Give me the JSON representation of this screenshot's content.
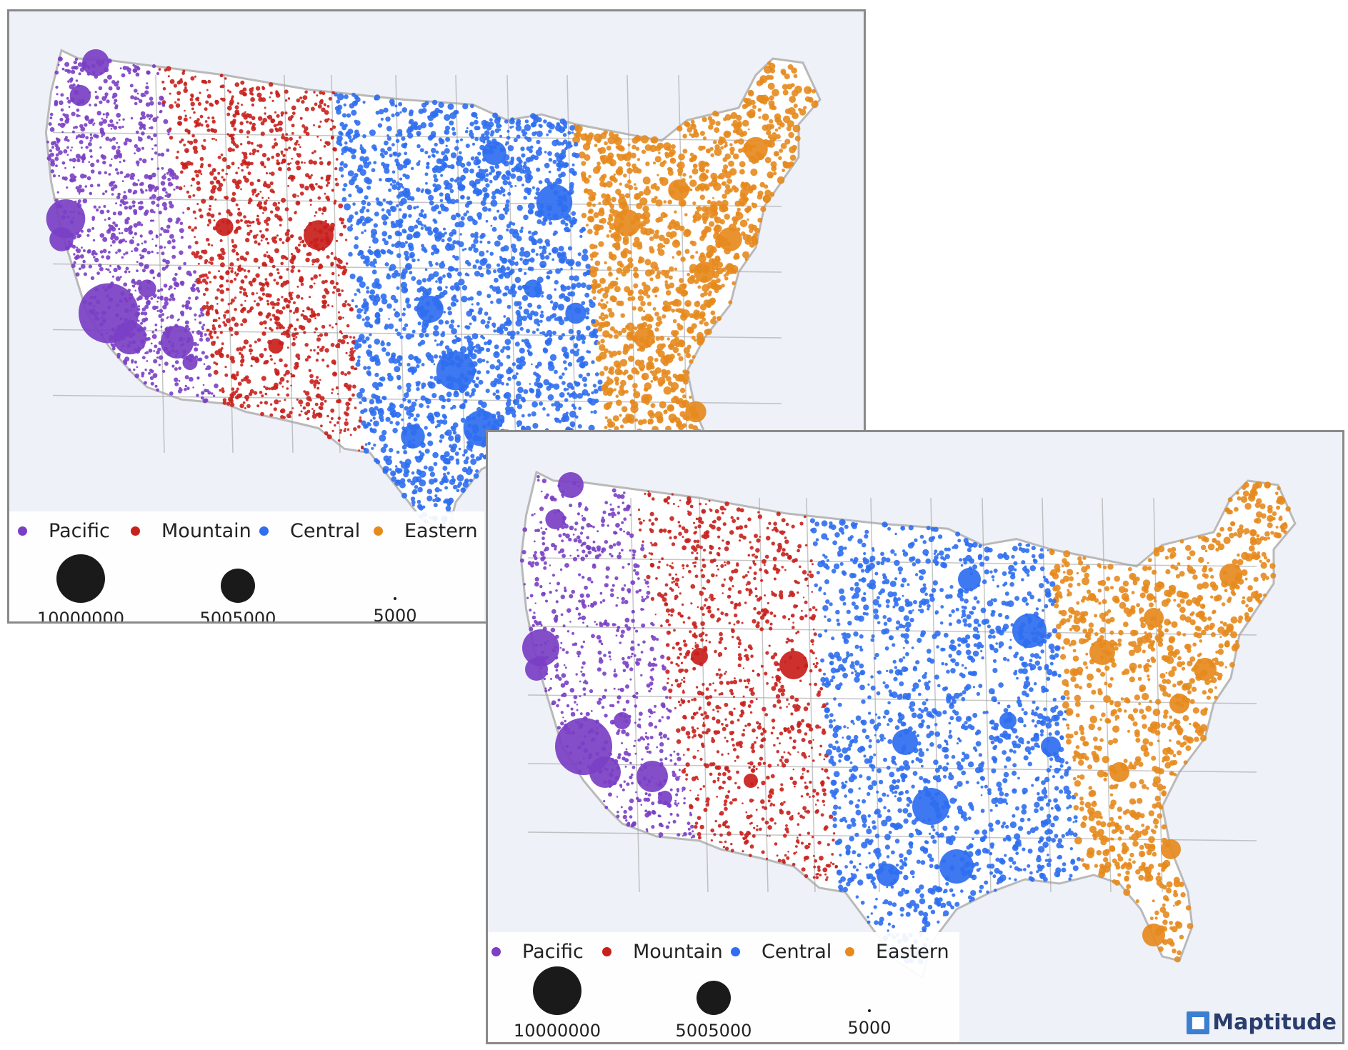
{
  "regions": [
    {
      "name": "Pacific",
      "color": "#7a3fc4"
    },
    {
      "name": "Mountain",
      "color": "#c8201c"
    },
    {
      "name": "Central",
      "color": "#2f6ef0"
    },
    {
      "name": "Eastern",
      "color": "#e68a1e"
    }
  ],
  "size_legend": [
    "10000000",
    "5005000",
    "5000"
  ],
  "logo": {
    "text": "Maptitude",
    "icon": "maptitude-logo-icon"
  },
  "colors": {
    "background": "#eef1f7",
    "land": "#ffffff",
    "water": "#dfe5f1",
    "border": "#b9b9b9",
    "state_border": "#a0a0a0"
  }
}
